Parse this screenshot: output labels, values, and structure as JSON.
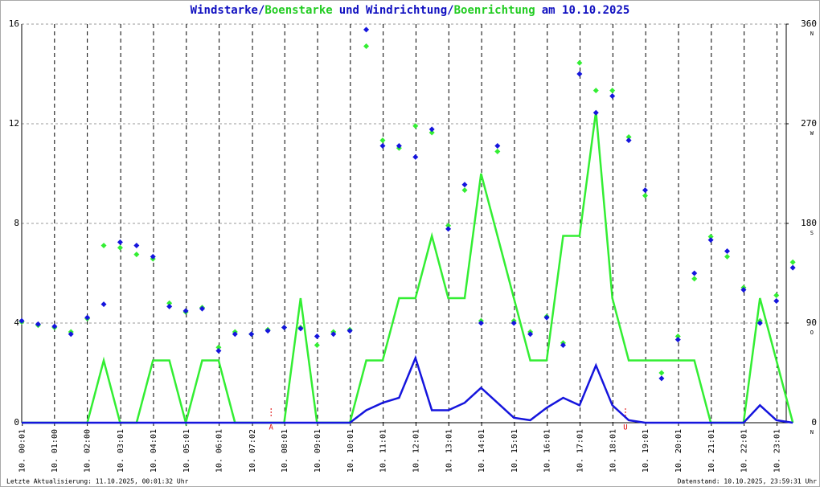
{
  "chart_data": {
    "type": "line",
    "title_parts": [
      {
        "text": "Windstarke",
        "color": "#1010c0"
      },
      {
        "text": "/",
        "color": "#1010c0"
      },
      {
        "text": "Boenstarke",
        "color": "#22cc22"
      },
      {
        "text": "und",
        "color": "#1010c0"
      },
      {
        "text": "Windrichtung",
        "color": "#1010c0"
      },
      {
        "text": "/",
        "color": "#1010c0"
      },
      {
        "text": "Boenrichtung",
        "color": "#22cc22"
      },
      {
        "text": "am 10.10.2025",
        "color": "#1010c0"
      }
    ],
    "footer_left": "Letzte Aktualisierung: 11.10.2025, 00:01:32 Uhr",
    "footer_right": "Datenstand: 10.10.2025, 23:59:31 Uhr",
    "xlim": [
      0,
      23.3
    ],
    "xticks": [
      {
        "value": 0.017,
        "label": "10. 00:01"
      },
      {
        "value": 1,
        "label": "10. 01:00"
      },
      {
        "value": 2,
        "label": "10. 02:00"
      },
      {
        "value": 3.017,
        "label": "10. 03:01"
      },
      {
        "value": 4.017,
        "label": "10. 04:01"
      },
      {
        "value": 5.017,
        "label": "10. 05:01"
      },
      {
        "value": 6.017,
        "label": "10. 06:01"
      },
      {
        "value": 7.033,
        "label": "10. 07:02"
      },
      {
        "value": 8.017,
        "label": "10. 08:01"
      },
      {
        "value": 9.017,
        "label": "10. 09:01"
      },
      {
        "value": 10.017,
        "label": "10. 10:01"
      },
      {
        "value": 11.017,
        "label": "10. 11:01"
      },
      {
        "value": 12.017,
        "label": "10. 12:01"
      },
      {
        "value": 13.017,
        "label": "10. 13:01"
      },
      {
        "value": 14.017,
        "label": "10. 14:01"
      },
      {
        "value": 15.017,
        "label": "10. 15:01"
      },
      {
        "value": 16.017,
        "label": "10. 16:01"
      },
      {
        "value": 17.017,
        "label": "10. 17:01"
      },
      {
        "value": 18.017,
        "label": "10. 18:01"
      },
      {
        "value": 19.017,
        "label": "10. 19:01"
      },
      {
        "value": 20.017,
        "label": "10. 20:01"
      },
      {
        "value": 21.017,
        "label": "10. 21:01"
      },
      {
        "value": 22.017,
        "label": "10. 22:01"
      },
      {
        "value": 23.017,
        "label": "10. 23:01"
      }
    ],
    "ylim": [
      0,
      16
    ],
    "yticks": [
      0,
      4,
      8,
      12,
      16
    ],
    "y2lim": [
      0,
      360
    ],
    "y2ticks": [
      0,
      90,
      180,
      270,
      360
    ],
    "y2tick_compass": [
      "N",
      "O",
      "S",
      "W",
      "N"
    ],
    "grid": true,
    "x": [
      0,
      0.5,
      1,
      1.5,
      2,
      2.5,
      3,
      3.5,
      4,
      4.5,
      5,
      5.5,
      6,
      6.5,
      7,
      7.5,
      8,
      8.5,
      9,
      9.5,
      10,
      10.5,
      11,
      11.5,
      12,
      12.5,
      13,
      13.5,
      14,
      14.5,
      15,
      15.5,
      16,
      16.5,
      17,
      17.5,
      18,
      18.5,
      19,
      19.5,
      20,
      20.5,
      21,
      21.5,
      22,
      22.5,
      23,
      23.5
    ],
    "series": [
      {
        "name": "Boenstarke",
        "color": "#33ee33",
        "values": [
          0,
          0,
          0,
          0,
          0,
          2.5,
          0,
          0,
          2.5,
          2.5,
          0,
          2.5,
          2.5,
          0,
          0,
          0,
          0,
          5,
          0,
          0,
          0,
          2.5,
          2.5,
          5,
          5,
          7.5,
          5,
          5,
          10,
          7.5,
          5,
          2.5,
          2.5,
          7.5,
          7.5,
          12.5,
          5,
          2.5,
          2.5,
          2.5,
          2.5,
          2.5,
          0,
          0,
          0,
          5,
          2.5,
          0
        ]
      },
      {
        "name": "Windstarke",
        "color": "#1515dd",
        "values": [
          0,
          0,
          0,
          0,
          0,
          0,
          0,
          0,
          0,
          0,
          0,
          0,
          0,
          0,
          0,
          0,
          0,
          0,
          0,
          0,
          0,
          0.5,
          0.8,
          1,
          2.6,
          0.5,
          0.5,
          0.8,
          1.4,
          0.8,
          0.2,
          0.1,
          0.6,
          1,
          0.7,
          2.3,
          0.7,
          0.1,
          0,
          0,
          0,
          0,
          0,
          0,
          0,
          0.7,
          0.1,
          0
        ]
      },
      {
        "name": "Boenrichtung",
        "type": "scatter",
        "axis": "y2",
        "color": "#33ee33",
        "values": [
          91,
          88,
          86,
          82,
          94,
          160,
          158,
          152,
          148,
          108,
          100,
          104,
          68,
          82,
          80,
          84,
          86,
          86,
          70,
          82,
          84,
          340,
          255,
          248,
          268,
          262,
          178,
          210,
          92,
          245,
          92,
          82,
          96,
          72,
          325,
          300,
          300,
          258,
          205,
          45,
          78,
          130,
          168,
          150,
          122,
          92,
          115,
          145
        ]
      },
      {
        "name": "Windrichtung",
        "type": "scatter",
        "axis": "y2",
        "color": "#1515dd",
        "values": [
          92,
          89,
          87,
          80,
          95,
          107,
          163,
          160,
          150,
          105,
          101,
          103,
          65,
          80,
          80,
          83,
          86,
          85,
          78,
          80,
          83,
          355,
          250,
          250,
          240,
          265,
          175,
          215,
          90,
          250,
          90,
          80,
          95,
          70,
          315,
          280,
          295,
          255,
          210,
          40,
          75,
          135,
          165,
          155,
          120,
          90,
          110,
          140
        ]
      }
    ],
    "annotations": [
      {
        "text": "A",
        "x": 7.6,
        "color": "#dd0000"
      },
      {
        "text": "U",
        "x": 18.4,
        "color": "#dd0000"
      }
    ]
  }
}
